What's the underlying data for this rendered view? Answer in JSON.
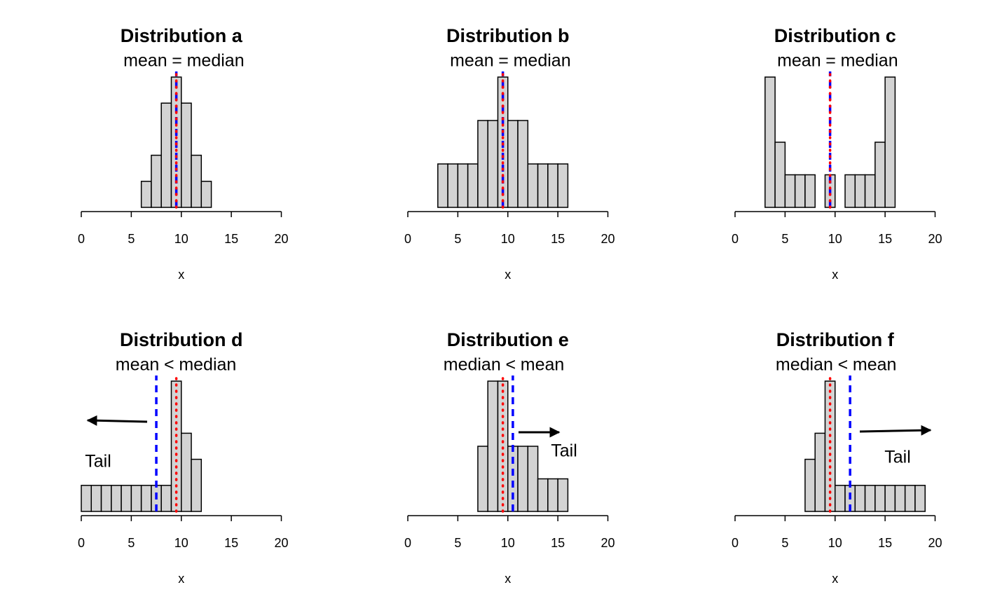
{
  "chart_data": [
    {
      "type": "histogram",
      "title": "Distribution a",
      "xlabel": "x",
      "xlim": [
        0,
        20
      ],
      "xticks": [
        0,
        5,
        10,
        15,
        20
      ],
      "ylim": [
        0,
        5
      ],
      "color": "#d3d3d3",
      "bins": [
        6,
        7,
        8,
        9,
        10,
        11,
        12,
        13
      ],
      "counts": [
        1,
        2,
        4,
        5,
        4,
        2,
        1
      ],
      "vlines": [
        {
          "label": "mean",
          "value": 9.5,
          "color": "#0000ff",
          "dash": "dashed"
        },
        {
          "label": "median",
          "value": 9.5,
          "color": "#ff0000",
          "dash": "dotted"
        }
      ],
      "relation": "="
    },
    {
      "type": "histogram",
      "title": "Distribution b",
      "xlabel": "x",
      "xlim": [
        0,
        20
      ],
      "xticks": [
        0,
        5,
        10,
        15,
        20
      ],
      "ylim": [
        0,
        3
      ],
      "color": "#d3d3d3",
      "bins": [
        3,
        4,
        5,
        6,
        7,
        8,
        9,
        10,
        11,
        12,
        13,
        14,
        15,
        16
      ],
      "counts": [
        1,
        1,
        1,
        1,
        2,
        2,
        3,
        2,
        2,
        1,
        1,
        1,
        1
      ],
      "vlines": [
        {
          "label": "mean",
          "value": 9.5,
          "color": "#0000ff",
          "dash": "dashed"
        },
        {
          "label": "median",
          "value": 9.5,
          "color": "#ff0000",
          "dash": "dotted"
        }
      ],
      "relation": "="
    },
    {
      "type": "histogram",
      "title": "Distribution c",
      "xlabel": "x",
      "xlim": [
        0,
        20
      ],
      "xticks": [
        0,
        5,
        10,
        15,
        20
      ],
      "ylim": [
        0,
        4
      ],
      "color": "#d3d3d3",
      "bins": [
        3,
        4,
        5,
        6,
        7,
        8,
        9,
        10,
        11,
        12,
        13,
        14,
        15,
        16
      ],
      "counts": [
        4,
        2,
        1,
        1,
        1,
        0,
        1,
        0,
        1,
        1,
        1,
        2,
        4
      ],
      "vlines": [
        {
          "label": "mean",
          "value": 9.5,
          "color": "#0000ff",
          "dash": "dashed"
        },
        {
          "label": "median",
          "value": 9.5,
          "color": "#ff0000",
          "dash": "dotted"
        }
      ],
      "relation": "="
    },
    {
      "type": "histogram",
      "title": "Distribution d",
      "xlabel": "x",
      "xlim": [
        0,
        20
      ],
      "xticks": [
        0,
        5,
        10,
        15,
        20
      ],
      "ylim": [
        0,
        5
      ],
      "color": "#d3d3d3",
      "bins": [
        0,
        1,
        2,
        3,
        4,
        5,
        6,
        7,
        8,
        9,
        10,
        11,
        12
      ],
      "counts": [
        1,
        1,
        1,
        1,
        1,
        1,
        1,
        1,
        1,
        5,
        3,
        2
      ],
      "vlines": [
        {
          "label": "mean",
          "value": 7.5,
          "color": "#0000ff",
          "dash": "dashed"
        },
        {
          "label": "median",
          "value": 9.5,
          "color": "#ff0000",
          "dash": "dotted"
        }
      ],
      "relation": "<",
      "tail": {
        "text": "Tail",
        "arrow": "left"
      }
    },
    {
      "type": "histogram",
      "title": "Distribution e",
      "xlabel": "x",
      "xlim": [
        0,
        20
      ],
      "xticks": [
        0,
        5,
        10,
        15,
        20
      ],
      "ylim": [
        0,
        4
      ],
      "color": "#d3d3d3",
      "bins": [
        7,
        8,
        9,
        10,
        11,
        12,
        13,
        14,
        15,
        16
      ],
      "counts": [
        2,
        4,
        4,
        2,
        2,
        2,
        1,
        1,
        1
      ],
      "vlines": [
        {
          "label": "median",
          "value": 9.5,
          "color": "#ff0000",
          "dash": "dotted"
        },
        {
          "label": "mean",
          "value": 10.5,
          "color": "#0000ff",
          "dash": "dashed"
        }
      ],
      "relation": "<",
      "tail": {
        "text": "Tail",
        "arrow": "right"
      }
    },
    {
      "type": "histogram",
      "title": "Distribution f",
      "xlabel": "x",
      "xlim": [
        0,
        20
      ],
      "xticks": [
        0,
        5,
        10,
        15,
        20
      ],
      "ylim": [
        0,
        5
      ],
      "color": "#d3d3d3",
      "bins": [
        7,
        8,
        9,
        10,
        11,
        12,
        13,
        14,
        15,
        16,
        17,
        18,
        19
      ],
      "counts": [
        2,
        3,
        5,
        1,
        1,
        1,
        1,
        1,
        1,
        1,
        1,
        1
      ],
      "vlines": [
        {
          "label": "median",
          "value": 9.5,
          "color": "#ff0000",
          "dash": "dotted"
        },
        {
          "label": "mean",
          "value": 11.5,
          "color": "#0000ff",
          "dash": "dashed"
        }
      ],
      "relation": "<",
      "tail": {
        "text": "Tail",
        "arrow": "right"
      }
    }
  ]
}
